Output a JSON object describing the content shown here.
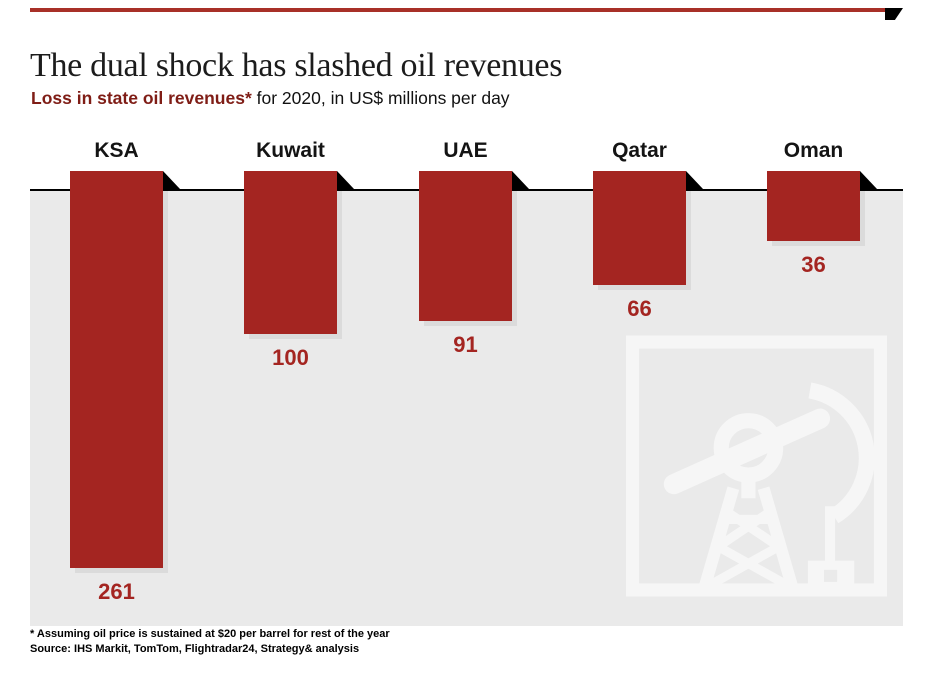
{
  "exhibit": {
    "title": "The dual shock has slashed oil revenues",
    "subtitle": {
      "lead": "Loss in state oil revenues*",
      "rest": " for 2020, in US$ millions per day"
    },
    "footnotes": [
      "* Assuming oil price is sustained at $20 per barrel for rest of the year",
      "Source: IHS Markit, TomTom, Flightradar24, Strategy& analysis"
    ]
  },
  "chart_data": {
    "type": "bar",
    "direction": "downward-from-baseline",
    "title": "Loss in state oil revenues* for 2020, in US$ millions per day",
    "unit": "US$ millions per day",
    "categories": [
      "KSA",
      "Kuwait",
      "UAE",
      "Qatar",
      "Oman"
    ],
    "values": [
      261,
      100,
      91,
      66,
      36
    ],
    "baseline_value": 0,
    "value_labels_shown": true,
    "grid": false,
    "legend": "none",
    "axes": "none (baseline rule only)"
  },
  "colors": {
    "bar": "#a42521",
    "value_label": "#a42521",
    "subtitle_lead": "#7f1d16",
    "top_rule": "#a83028",
    "corner_flag": "#000000",
    "baseline": "#000000",
    "chart_background": "#eaeaea",
    "bar_shadow": "#dbdbdb",
    "pumpjack_icon": "#f6f6f6"
  },
  "icons": {
    "pumpjack": "oil-pumpjack-icon"
  }
}
